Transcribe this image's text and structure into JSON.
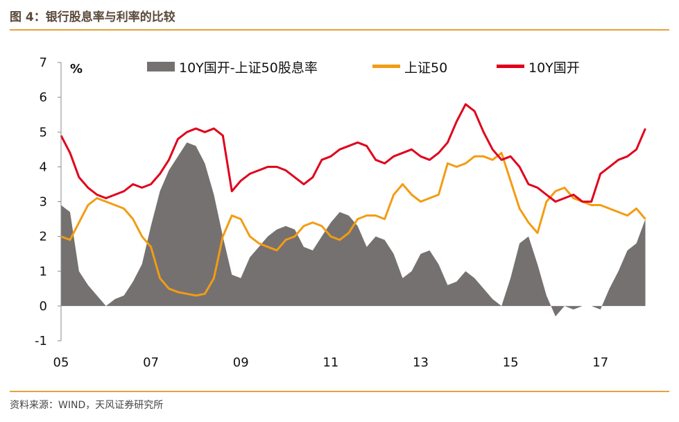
{
  "header": {
    "figure_title": "图 4：银行股息率与利率的比较"
  },
  "footer": {
    "source": "资料来源：WIND，天风证券研究所"
  },
  "colors": {
    "spread": "#757171",
    "sse50": "#f39c12",
    "cdb10y": "#e0001b",
    "rule": "#e8a13c"
  },
  "chart_data": {
    "type": "bar",
    "unit": "%",
    "ylim": [
      -1,
      7
    ],
    "yticks": [
      "7",
      "6",
      "5",
      "4",
      "3",
      "2",
      "1",
      "0",
      "-1"
    ],
    "ytick_values": [
      7,
      6,
      5,
      4,
      3,
      2,
      1,
      0,
      -1
    ],
    "xlim": [
      2005.0,
      2018.1
    ],
    "xticks": [
      "05",
      "07",
      "09",
      "11",
      "13",
      "15",
      "17"
    ],
    "xtick_values": [
      2005,
      2007,
      2009,
      2011,
      2013,
      2015,
      2017
    ],
    "legend_position": "top",
    "grid": false,
    "series": [
      {
        "name": "10Y国开-上证50股息率",
        "type": "area",
        "color": "#757171",
        "x": [
          2005.0,
          2005.2,
          2005.4,
          2005.6,
          2005.8,
          2006.0,
          2006.2,
          2006.4,
          2006.6,
          2006.8,
          2007.0,
          2007.2,
          2007.4,
          2007.6,
          2007.8,
          2008.0,
          2008.2,
          2008.4,
          2008.6,
          2008.8,
          2009.0,
          2009.2,
          2009.4,
          2009.6,
          2009.8,
          2010.0,
          2010.2,
          2010.4,
          2010.6,
          2010.8,
          2011.0,
          2011.2,
          2011.4,
          2011.6,
          2011.8,
          2012.0,
          2012.2,
          2012.4,
          2012.6,
          2012.8,
          2013.0,
          2013.2,
          2013.4,
          2013.6,
          2013.8,
          2014.0,
          2014.2,
          2014.4,
          2014.6,
          2014.8,
          2015.0,
          2015.2,
          2015.4,
          2015.6,
          2015.8,
          2016.0,
          2016.2,
          2016.4,
          2016.6,
          2016.8,
          2017.0,
          2017.2,
          2017.4,
          2017.6,
          2017.8,
          2018.0
        ],
        "values": [
          2.9,
          2.7,
          1.0,
          0.6,
          0.3,
          0.0,
          0.2,
          0.3,
          0.7,
          1.2,
          2.3,
          3.3,
          3.9,
          4.3,
          4.7,
          4.6,
          4.1,
          3.2,
          2.0,
          0.9,
          0.8,
          1.4,
          1.7,
          2.0,
          2.2,
          2.3,
          2.2,
          1.7,
          1.6,
          2.0,
          2.4,
          2.7,
          2.6,
          2.3,
          1.7,
          2.0,
          1.9,
          1.5,
          0.8,
          1.0,
          1.5,
          1.6,
          1.2,
          0.6,
          0.7,
          1.0,
          0.8,
          0.5,
          0.2,
          0.0,
          0.8,
          1.8,
          2.0,
          1.2,
          0.3,
          -0.3,
          0.0,
          -0.1,
          0.0,
          0.0,
          -0.1,
          0.5,
          1.0,
          1.6,
          1.8,
          2.5
        ]
      },
      {
        "name": "上证50",
        "type": "line",
        "color": "#f39c12",
        "x": [
          2005.0,
          2005.2,
          2005.4,
          2005.6,
          2005.8,
          2006.0,
          2006.2,
          2006.4,
          2006.6,
          2006.8,
          2007.0,
          2007.2,
          2007.4,
          2007.6,
          2007.8,
          2008.0,
          2008.2,
          2008.4,
          2008.6,
          2008.8,
          2009.0,
          2009.2,
          2009.4,
          2009.6,
          2009.8,
          2010.0,
          2010.2,
          2010.4,
          2010.6,
          2010.8,
          2011.0,
          2011.2,
          2011.4,
          2011.6,
          2011.8,
          2012.0,
          2012.2,
          2012.4,
          2012.6,
          2012.8,
          2013.0,
          2013.2,
          2013.4,
          2013.6,
          2013.8,
          2014.0,
          2014.2,
          2014.4,
          2014.6,
          2014.8,
          2015.0,
          2015.2,
          2015.4,
          2015.6,
          2015.8,
          2016.0,
          2016.2,
          2016.4,
          2016.6,
          2016.8,
          2017.0,
          2017.2,
          2017.4,
          2017.6,
          2017.8,
          2018.0
        ],
        "values": [
          2.0,
          1.9,
          2.4,
          2.9,
          3.1,
          3.0,
          2.9,
          2.8,
          2.5,
          2.0,
          1.7,
          0.8,
          0.5,
          0.4,
          0.35,
          0.3,
          0.35,
          0.8,
          2.0,
          2.6,
          2.5,
          2.0,
          1.8,
          1.7,
          1.6,
          1.9,
          2.0,
          2.3,
          2.4,
          2.3,
          2.0,
          1.9,
          2.1,
          2.5,
          2.6,
          2.6,
          2.5,
          3.2,
          3.5,
          3.2,
          3.0,
          3.1,
          3.2,
          4.1,
          4.0,
          4.1,
          4.3,
          4.3,
          4.2,
          4.4,
          3.6,
          2.8,
          2.4,
          2.1,
          3.0,
          3.3,
          3.4,
          3.1,
          3.0,
          2.9,
          2.9,
          2.8,
          2.7,
          2.6,
          2.8,
          2.5
        ]
      },
      {
        "name": "10Y国开",
        "type": "line",
        "color": "#e0001b",
        "x": [
          2005.0,
          2005.2,
          2005.4,
          2005.6,
          2005.8,
          2006.0,
          2006.2,
          2006.4,
          2006.6,
          2006.8,
          2007.0,
          2007.2,
          2007.4,
          2007.6,
          2007.8,
          2008.0,
          2008.2,
          2008.4,
          2008.6,
          2008.8,
          2009.0,
          2009.2,
          2009.4,
          2009.6,
          2009.8,
          2010.0,
          2010.2,
          2010.4,
          2010.6,
          2010.8,
          2011.0,
          2011.2,
          2011.4,
          2011.6,
          2011.8,
          2012.0,
          2012.2,
          2012.4,
          2012.6,
          2012.8,
          2013.0,
          2013.2,
          2013.4,
          2013.6,
          2013.8,
          2014.0,
          2014.2,
          2014.4,
          2014.6,
          2014.8,
          2015.0,
          2015.2,
          2015.4,
          2015.6,
          2015.8,
          2016.0,
          2016.2,
          2016.4,
          2016.6,
          2016.8,
          2017.0,
          2017.2,
          2017.4,
          2017.6,
          2017.8,
          2018.0
        ],
        "values": [
          4.9,
          4.4,
          3.7,
          3.4,
          3.2,
          3.1,
          3.2,
          3.3,
          3.5,
          3.4,
          3.5,
          3.8,
          4.2,
          4.8,
          5.0,
          5.1,
          5.0,
          5.1,
          4.9,
          3.3,
          3.6,
          3.8,
          3.9,
          4.0,
          4.0,
          3.9,
          3.7,
          3.5,
          3.7,
          4.2,
          4.3,
          4.5,
          4.6,
          4.7,
          4.6,
          4.2,
          4.1,
          4.3,
          4.4,
          4.5,
          4.3,
          4.2,
          4.4,
          4.7,
          5.3,
          5.8,
          5.6,
          5.0,
          4.5,
          4.2,
          4.3,
          4.0,
          3.5,
          3.4,
          3.2,
          3.0,
          3.1,
          3.2,
          3.0,
          3.0,
          3.8,
          4.0,
          4.2,
          4.3,
          4.5,
          5.1
        ]
      }
    ]
  }
}
